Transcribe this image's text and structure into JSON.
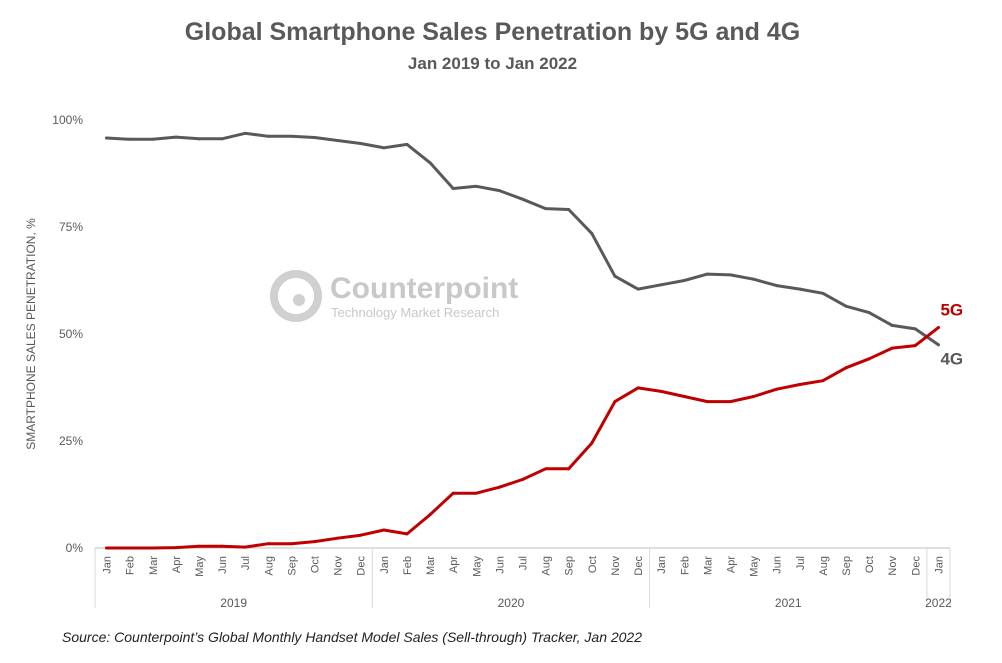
{
  "chart_data": {
    "type": "line",
    "title": "Global Smartphone Sales Penetration by 5G and 4G",
    "subtitle": "Jan 2019 to Jan 2022",
    "ylabel": "SMARTPHONE SALES PENETRATION, %",
    "xlabel": "",
    "ylim": [
      0,
      100
    ],
    "yticks": [
      "0%",
      "25%",
      "50%",
      "75%",
      "100%"
    ],
    "ytick_values": [
      0,
      25,
      50,
      75,
      100
    ],
    "months": [
      "Jan",
      "Feb",
      "Mar",
      "Apr",
      "May",
      "Jun",
      "Jul",
      "Aug",
      "Sep",
      "Oct",
      "Nov",
      "Dec",
      "Jan",
      "Feb",
      "Mar",
      "Apr",
      "May",
      "Jun",
      "Jul",
      "Aug",
      "Sep",
      "Oct",
      "Nov",
      "Dec",
      "Jan",
      "Feb",
      "Mar",
      "Apr",
      "May",
      "Jun",
      "Jul",
      "Aug",
      "Sep",
      "Oct",
      "Nov",
      "Dec",
      "Jan"
    ],
    "years": [
      {
        "label": "2019",
        "start": 0,
        "end": 11
      },
      {
        "label": "2020",
        "start": 12,
        "end": 23
      },
      {
        "label": "2021",
        "start": 24,
        "end": 35
      },
      {
        "label": "2022",
        "start": 36,
        "end": 36
      }
    ],
    "series": [
      {
        "name": "4G",
        "color": "#595959",
        "values": [
          95.8,
          95.5,
          95.5,
          96,
          95.6,
          95.6,
          96.9,
          96.2,
          96.2,
          95.9,
          95.2,
          94.5,
          93.5,
          94.3,
          90,
          84,
          84.5,
          83.5,
          81.5,
          79.3,
          79.1,
          73.5,
          63.5,
          60.5,
          61.5,
          62.5,
          64,
          63.8,
          62.8,
          61.3,
          60.5,
          59.5,
          56.5,
          55,
          52,
          51.2,
          47.5
        ]
      },
      {
        "name": "5G",
        "color": "#c00000",
        "values": [
          0,
          0,
          0,
          0.1,
          0.4,
          0.4,
          0.2,
          1,
          1,
          1.5,
          2.3,
          3,
          4.2,
          3.3,
          7.8,
          12.8,
          12.8,
          14.2,
          16,
          18.5,
          18.5,
          24.5,
          34.2,
          37.4,
          36.6,
          35.4,
          34.2,
          34.2,
          35.4,
          37.1,
          38.2,
          39.1,
          42.1,
          44.2,
          46.7,
          47.3,
          51.5
        ]
      }
    ]
  },
  "watermark": {
    "brand": "Counterpoint",
    "tagline": "Technology Market Research"
  },
  "source": "Source: Counterpoint’s Global Monthly Handset Model Sales (Sell-through) Tracker, Jan 2022"
}
